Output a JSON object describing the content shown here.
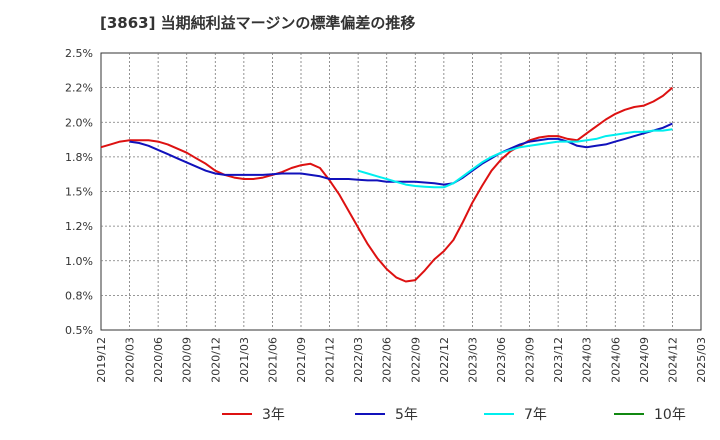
{
  "chart_data": {
    "type": "line",
    "title": "[3863]  当期純利益マージンの標準偏差の推移",
    "xlabel": "",
    "ylabel": "",
    "x_ticks": [
      "2019/12",
      "2020/03",
      "2020/06",
      "2020/09",
      "2020/12",
      "2021/03",
      "2021/06",
      "2021/09",
      "2021/12",
      "2022/03",
      "2022/06",
      "2022/09",
      "2022/12",
      "2023/03",
      "2023/06",
      "2023/09",
      "2023/12",
      "2024/03",
      "2024/06",
      "2024/09",
      "2024/12",
      "2025/03"
    ],
    "y_ticks": [
      "0.5%",
      "0.8%",
      "1.0%",
      "1.2%",
      "1.5%",
      "1.8%",
      "2.0%",
      "2.2%",
      "2.5%"
    ],
    "ylim": [
      0.5,
      2.5
    ],
    "grid": true,
    "legend_position": "bottom",
    "series": [
      {
        "name": "3年",
        "color": "#dd1111",
        "x": [
          "2019/12",
          "2020/01",
          "2020/02",
          "2020/03",
          "2020/04",
          "2020/05",
          "2020/06",
          "2020/07",
          "2020/08",
          "2020/09",
          "2020/10",
          "2020/11",
          "2020/12",
          "2021/01",
          "2021/02",
          "2021/03",
          "2021/04",
          "2021/05",
          "2021/06",
          "2021/07",
          "2021/08",
          "2021/09",
          "2021/10",
          "2021/11",
          "2021/12",
          "2022/01",
          "2022/02",
          "2022/03",
          "2022/04",
          "2022/05",
          "2022/06",
          "2022/07",
          "2022/08",
          "2022/09",
          "2022/10",
          "2022/11",
          "2022/12",
          "2023/01",
          "2023/02",
          "2023/03",
          "2023/04",
          "2023/05",
          "2023/06",
          "2023/07",
          "2023/08",
          "2023/09",
          "2023/10",
          "2023/11",
          "2023/12",
          "2024/01",
          "2024/02",
          "2024/03",
          "2024/04",
          "2024/05",
          "2024/06",
          "2024/07",
          "2024/08",
          "2024/09",
          "2024/10",
          "2024/11",
          "2024/12"
        ],
        "values": [
          1.82,
          1.84,
          1.86,
          1.87,
          1.87,
          1.87,
          1.86,
          1.84,
          1.81,
          1.78,
          1.74,
          1.7,
          1.65,
          1.62,
          1.6,
          1.59,
          1.59,
          1.6,
          1.62,
          1.64,
          1.67,
          1.69,
          1.7,
          1.67,
          1.58,
          1.48,
          1.36,
          1.24,
          1.12,
          1.02,
          0.94,
          0.88,
          0.85,
          0.86,
          0.93,
          1.01,
          1.07,
          1.15,
          1.28,
          1.42,
          1.54,
          1.65,
          1.73,
          1.79,
          1.83,
          1.87,
          1.89,
          1.9,
          1.9,
          1.88,
          1.87,
          1.92,
          1.97,
          2.02,
          2.06,
          2.09,
          2.11,
          2.12,
          2.15,
          2.19,
          2.25
        ]
      },
      {
        "name": "5年",
        "color": "#1111bb",
        "x": [
          "2020/03",
          "2020/04",
          "2020/05",
          "2020/06",
          "2020/07",
          "2020/08",
          "2020/09",
          "2020/10",
          "2020/11",
          "2020/12",
          "2021/01",
          "2021/02",
          "2021/03",
          "2021/04",
          "2021/05",
          "2021/06",
          "2021/07",
          "2021/08",
          "2021/09",
          "2021/10",
          "2021/11",
          "2021/12",
          "2022/01",
          "2022/02",
          "2022/03",
          "2022/04",
          "2022/05",
          "2022/06",
          "2022/07",
          "2022/08",
          "2022/09",
          "2022/10",
          "2022/11",
          "2022/12",
          "2023/01",
          "2023/02",
          "2023/03",
          "2023/04",
          "2023/05",
          "2023/06",
          "2023/07",
          "2023/08",
          "2023/09",
          "2023/10",
          "2023/11",
          "2023/12",
          "2024/01",
          "2024/02",
          "2024/03",
          "2024/04",
          "2024/05",
          "2024/06",
          "2024/07",
          "2024/08",
          "2024/09",
          "2024/10",
          "2024/11",
          "2024/12"
        ],
        "values": [
          1.86,
          1.85,
          1.83,
          1.8,
          1.77,
          1.74,
          1.71,
          1.68,
          1.65,
          1.63,
          1.62,
          1.62,
          1.62,
          1.62,
          1.62,
          1.625,
          1.63,
          1.63,
          1.63,
          1.62,
          1.61,
          1.59,
          1.59,
          1.59,
          1.585,
          1.58,
          1.58,
          1.57,
          1.57,
          1.57,
          1.57,
          1.565,
          1.56,
          1.55,
          1.56,
          1.6,
          1.65,
          1.7,
          1.74,
          1.78,
          1.81,
          1.84,
          1.86,
          1.87,
          1.88,
          1.88,
          1.86,
          1.83,
          1.82,
          1.83,
          1.84,
          1.86,
          1.88,
          1.9,
          1.92,
          1.94,
          1.96,
          1.99
        ]
      },
      {
        "name": "7年",
        "color": "#00eeee",
        "x": [
          "2022/03",
          "2022/04",
          "2022/05",
          "2022/06",
          "2022/07",
          "2022/08",
          "2022/09",
          "2022/10",
          "2022/11",
          "2022/12",
          "2023/01",
          "2023/02",
          "2023/03",
          "2023/04",
          "2023/05",
          "2023/06",
          "2023/07",
          "2023/08",
          "2023/09",
          "2023/10",
          "2023/11",
          "2023/12",
          "2024/01",
          "2024/02",
          "2024/03",
          "2024/04",
          "2024/05",
          "2024/06",
          "2024/07",
          "2024/08",
          "2024/09",
          "2024/10",
          "2024/11",
          "2024/12"
        ],
        "values": [
          1.65,
          1.63,
          1.61,
          1.59,
          1.57,
          1.55,
          1.54,
          1.535,
          1.53,
          1.53,
          1.56,
          1.61,
          1.66,
          1.71,
          1.75,
          1.78,
          1.8,
          1.82,
          1.83,
          1.84,
          1.85,
          1.86,
          1.86,
          1.86,
          1.87,
          1.88,
          1.9,
          1.91,
          1.92,
          1.93,
          1.93,
          1.94,
          1.94,
          1.95
        ]
      },
      {
        "name": "10年",
        "color": "#118811",
        "x": [],
        "values": []
      }
    ]
  }
}
